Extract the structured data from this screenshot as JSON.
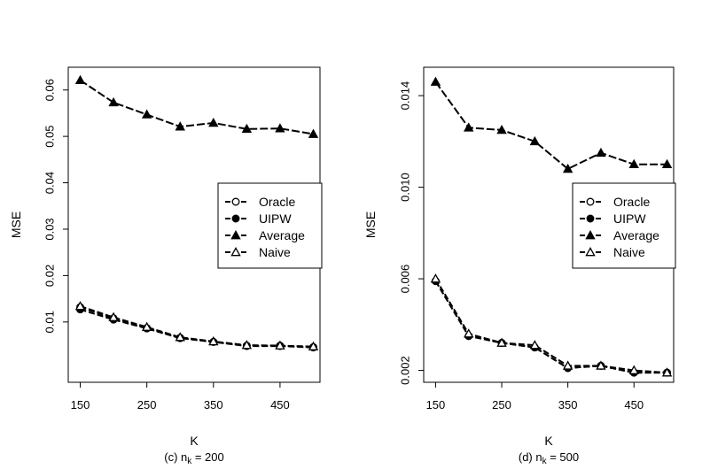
{
  "chart_data": [
    {
      "type": "line",
      "caption": "(c) n",
      "caption_subscript": "k",
      "caption_suffix": " = 200",
      "xlabel": "K",
      "ylabel": "MSE",
      "x": [
        150,
        200,
        250,
        300,
        350,
        400,
        450,
        500
      ],
      "xticks": [
        "150",
        "250",
        "350",
        "450"
      ],
      "xtick_values": [
        150,
        250,
        350,
        450
      ],
      "xlim": [
        132,
        510
      ],
      "ylim": [
        -0.003,
        0.0649
      ],
      "yticks": [
        "0.01",
        "0.02",
        "0.03",
        "0.04",
        "0.05",
        "0.06"
      ],
      "ytick_values": [
        0.01,
        0.02,
        0.03,
        0.04,
        0.05,
        0.06
      ],
      "series": [
        {
          "name": "Oracle",
          "marker": "open-circle",
          "values": [
            0.0132,
            0.0108,
            0.0087,
            0.0066,
            0.0057,
            0.0049,
            0.0049,
            0.0046
          ]
        },
        {
          "name": "UIPW",
          "marker": "filled-circle",
          "values": [
            0.0127,
            0.0105,
            0.0086,
            0.0065,
            0.0057,
            0.0048,
            0.0048,
            0.0045
          ]
        },
        {
          "name": "Average",
          "marker": "filled-triangle",
          "values": [
            0.0621,
            0.0573,
            0.0547,
            0.0521,
            0.0529,
            0.0516,
            0.0517,
            0.0505
          ]
        },
        {
          "name": "Naive",
          "marker": "open-triangle",
          "values": [
            0.0134,
            0.011,
            0.0089,
            0.0067,
            0.0058,
            0.005,
            0.0049,
            0.0047
          ]
        }
      ],
      "legend": [
        "Oracle",
        "UIPW",
        "Average",
        "Naive"
      ],
      "legend_position": "right"
    },
    {
      "type": "line",
      "caption": "(d) n",
      "caption_subscript": "k",
      "caption_suffix": " = 500",
      "xlabel": "K",
      "ylabel": "MSE",
      "x": [
        150,
        200,
        250,
        300,
        350,
        400,
        450,
        500
      ],
      "xticks": [
        "150",
        "250",
        "350",
        "450"
      ],
      "xtick_values": [
        150,
        250,
        350,
        450
      ],
      "xlim": [
        132,
        510
      ],
      "ylim": [
        0.00148,
        0.01524
      ],
      "yticks": [
        "0.002",
        "0.006",
        "0.010",
        "0.014"
      ],
      "ytick_values": [
        0.002,
        0.006,
        0.01,
        0.014
      ],
      "series": [
        {
          "name": "Oracle",
          "marker": "open-circle",
          "values": [
            0.0059,
            0.0035,
            0.0032,
            0.003,
            0.0021,
            0.0022,
            0.0019,
            0.0019
          ]
        },
        {
          "name": "UIPW",
          "marker": "filled-circle",
          "values": [
            0.0059,
            0.0035,
            0.0032,
            0.003,
            0.0021,
            0.0022,
            0.0019,
            0.0019
          ]
        },
        {
          "name": "Average",
          "marker": "filled-triangle",
          "values": [
            0.0146,
            0.0126,
            0.0125,
            0.012,
            0.0108,
            0.0115,
            0.011,
            0.011
          ]
        },
        {
          "name": "Naive",
          "marker": "open-triangle",
          "values": [
            0.006,
            0.0036,
            0.0032,
            0.0031,
            0.0022,
            0.0022,
            0.002,
            0.0019
          ]
        }
      ],
      "legend": [
        "Oracle",
        "UIPW",
        "Average",
        "Naive"
      ],
      "legend_position": "right"
    }
  ]
}
